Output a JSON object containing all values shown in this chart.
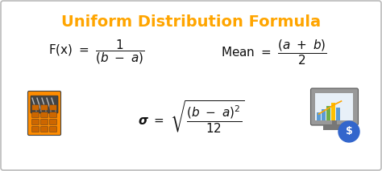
{
  "title": "Uniform Distribution Formula",
  "title_color": "#FFA500",
  "title_fontsize": 14,
  "bg_color": "#FFFFFF",
  "border_color": "#BBBBBB",
  "text_color": "#111111",
  "formula_fontsize": 11,
  "calc_body_color": "#FF8C00",
  "calc_screen_color": "#555555",
  "calc_btn_color": "#CC6600",
  "calc_stripe_color": "#CCCCCC",
  "monitor_body_color": "#AAAAAA",
  "monitor_screen_color": "#E8F0F8",
  "monitor_stand_color": "#888888",
  "bar_colors": [
    "#5B9BD5",
    "#5B9BD5",
    "#70AD47",
    "#FFC000",
    "#FF0000"
  ],
  "trend_color": "#FFA500",
  "money_bag_color": "#3366CC"
}
